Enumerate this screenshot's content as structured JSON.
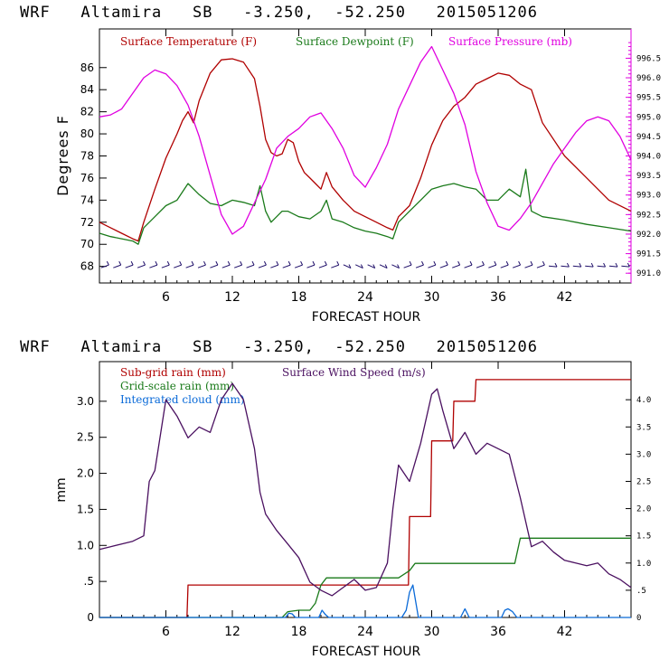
{
  "chart_data": [
    {
      "type": "line",
      "title": "WRF   Altamira   SB   -3.250,  -52.250   2015051206",
      "xlabel": "FORECAST HOUR",
      "ylabel": "Degrees F",
      "x_ticks": [
        "6",
        "12",
        "18",
        "24",
        "30",
        "36",
        "42"
      ],
      "xlim": [
        0,
        48
      ],
      "ylim": [
        66.5,
        89.5
      ],
      "y_ticks": [
        "68",
        "70",
        "72",
        "74",
        "76",
        "78",
        "80",
        "82",
        "84",
        "86"
      ],
      "y2lim": [
        990.75,
        997.25
      ],
      "y2_ticks": [
        "991.0",
        "991.5",
        "992.0",
        "992.5",
        "993.0",
        "993.5",
        "994.0",
        "994.5",
        "995.0",
        "995.5",
        "996.0",
        "996.5"
      ],
      "legend": [
        "Surface Temperature (F)",
        "Surface Dewpoint (F)",
        "Surface Pressure (mb)"
      ],
      "colors": {
        "temperature": "#b00000",
        "dewpoint": "#1a7a1a",
        "pressure": "#e000e0",
        "wind_barbs": "#20106a"
      },
      "series": [
        {
          "name": "Surface Temperature (F)",
          "color": "#b00000",
          "x": [
            0,
            1,
            2,
            3,
            3.5,
            4,
            5,
            6,
            7,
            7.5,
            8,
            8.5,
            9,
            10,
            11,
            12,
            13,
            14,
            14.5,
            15,
            15.5,
            16,
            16.5,
            17,
            17.5,
            18,
            18.5,
            19,
            19.5,
            20,
            20.5,
            21,
            22,
            23,
            24,
            25,
            26,
            26.5,
            27,
            28,
            29,
            30,
            31,
            32,
            33,
            34,
            35,
            36,
            37,
            38,
            39,
            40,
            42,
            44,
            46,
            48
          ],
          "y": [
            72,
            71.5,
            71,
            70.5,
            70.3,
            72,
            75,
            77.8,
            80,
            81.2,
            82,
            81,
            83,
            85.5,
            86.7,
            86.8,
            86.5,
            85,
            82.5,
            79.5,
            78.3,
            78,
            78.2,
            79.5,
            79.2,
            77.5,
            76.5,
            76,
            75.5,
            75,
            76.5,
            75.2,
            74,
            73,
            72.5,
            72,
            71.5,
            71.3,
            72.5,
            73.5,
            76,
            79,
            81.2,
            82.5,
            83.3,
            84.5,
            85,
            85.5,
            85.3,
            84.5,
            84,
            81,
            78,
            76,
            74,
            73
          ]
        },
        {
          "name": "Surface Dewpoint (F)",
          "color": "#1a7a1a",
          "x": [
            0,
            1,
            2,
            3,
            3.5,
            4,
            5,
            6,
            7,
            8,
            9,
            10,
            11,
            12,
            13,
            14,
            14.5,
            15,
            15.5,
            16,
            16.5,
            17,
            18,
            19,
            20,
            20.5,
            21,
            22,
            23,
            24,
            25,
            26,
            26.5,
            27,
            28,
            29,
            30,
            31,
            32,
            33,
            34,
            35,
            36,
            37,
            38,
            38.5,
            39,
            40,
            42,
            44,
            46,
            48
          ],
          "y": [
            71,
            70.7,
            70.5,
            70.3,
            70,
            71.5,
            72.5,
            73.5,
            74,
            75.5,
            74.5,
            73.7,
            73.5,
            74,
            73.8,
            73.5,
            75.3,
            73,
            72,
            72.5,
            73,
            73,
            72.5,
            72.3,
            73,
            74,
            72.3,
            72,
            71.5,
            71.2,
            71,
            70.7,
            70.5,
            72,
            73,
            74,
            75,
            75.3,
            75.5,
            75.2,
            75,
            74,
            74,
            75,
            74.3,
            76.8,
            73,
            72.5,
            72.2,
            71.8,
            71.5,
            71.2
          ]
        },
        {
          "name": "Surface Pressure (mb)",
          "color": "#e000e0",
          "x": [
            0,
            1,
            2,
            3,
            4,
            5,
            6,
            7,
            8,
            9,
            10,
            11,
            12,
            13,
            14,
            15,
            16,
            17,
            18,
            19,
            20,
            21,
            22,
            23,
            24,
            25,
            26,
            27,
            28,
            29,
            30,
            31,
            32,
            33,
            34,
            35,
            36,
            37,
            38,
            39,
            40,
            41,
            42,
            43,
            44,
            45,
            46,
            47,
            48
          ],
          "y": [
            995.0,
            995.05,
            995.2,
            995.6,
            996.0,
            996.2,
            996.1,
            995.8,
            995.3,
            994.5,
            993.5,
            992.5,
            992.0,
            992.2,
            992.8,
            993.4,
            994.2,
            994.5,
            994.7,
            995.0,
            995.1,
            994.7,
            994.2,
            993.5,
            993.2,
            993.7,
            994.3,
            995.2,
            995.8,
            996.4,
            996.8,
            996.2,
            995.6,
            994.8,
            993.6,
            992.8,
            992.2,
            992.1,
            992.4,
            992.8,
            993.3,
            993.8,
            994.2,
            994.6,
            994.9,
            995.0,
            994.9,
            994.5,
            993.9
          ]
        },
        {
          "name": "Wind barbs",
          "color": "#20106a",
          "x_range": [
            0.5,
            47.5
          ],
          "y": 68
        }
      ]
    },
    {
      "type": "line",
      "title": "WRF   Altamira   SB   -3.250,  -52.250   2015051206",
      "xlabel": "FORECAST HOUR",
      "ylabel": "mm",
      "x_ticks": [
        "6",
        "12",
        "18",
        "24",
        "30",
        "36",
        "42"
      ],
      "xlim": [
        0,
        48
      ],
      "ylim": [
        0,
        3.55
      ],
      "y_ticks": [
        "0",
        ".5",
        "1.0",
        "1.5",
        "2.0",
        "2.5",
        "3.0"
      ],
      "y2lim": [
        0,
        4.7
      ],
      "y2_ticks": [
        "0",
        ".5",
        "1.0",
        "1.5",
        "2.0",
        "2.5",
        "3.0",
        "3.5",
        "4.0"
      ],
      "legend": [
        "Sub-grid rain (mm)",
        "Surface Wind Speed (m/s)",
        "Grid-scale rain (mm)",
        "Integrated cloud (mm)"
      ],
      "colors": {
        "subgrid": "#b00000",
        "wind": "#4a1060",
        "gridscale": "#1a7a1a",
        "cloud": "#0a6ad8"
      },
      "series": [
        {
          "name": "Sub-grid rain (mm)",
          "color": "#b00000",
          "x": [
            0,
            7.9,
            8,
            27.9,
            28,
            29.9,
            30,
            31.9,
            32,
            33.9,
            34,
            48
          ],
          "y": [
            0,
            0,
            0.45,
            0.45,
            1.4,
            1.4,
            2.45,
            2.45,
            3.0,
            3.0,
            3.3,
            3.3
          ]
        },
        {
          "name": "Grid-scale rain (mm)",
          "color": "#1a7a1a",
          "x": [
            0,
            16.5,
            17,
            18,
            19,
            19.5,
            20,
            20.5,
            27,
            28,
            28.5,
            34,
            37.5,
            38,
            48
          ],
          "y": [
            0,
            0,
            0.08,
            0.1,
            0.1,
            0.2,
            0.45,
            0.55,
            0.55,
            0.65,
            0.75,
            0.75,
            0.75,
            1.1,
            1.1
          ]
        },
        {
          "name": "Integrated cloud (mm)",
          "color": "#0a6ad8",
          "x": [
            0,
            16.8,
            17.1,
            17.4,
            17.7,
            19.8,
            20.1,
            20.4,
            20.7,
            27.3,
            27.7,
            28,
            28.3,
            28.8,
            32.6,
            33,
            33.4,
            36.3,
            36.6,
            36.9,
            37.3,
            37.7,
            48
          ],
          "y": [
            0,
            0,
            0.06,
            0.05,
            0,
            0,
            0.1,
            0.04,
            0,
            0,
            0.1,
            0.35,
            0.45,
            0,
            0,
            0.12,
            0,
            0,
            0.1,
            0.12,
            0.08,
            0,
            0
          ]
        },
        {
          "name": "Surface Wind Speed (m/s)",
          "color": "#4a1060",
          "x": [
            0,
            1,
            2,
            3,
            4,
            4.5,
            5,
            6,
            7,
            8,
            9,
            10,
            11,
            12,
            13,
            14,
            14.5,
            15,
            16,
            17,
            18,
            19,
            20,
            21,
            22,
            23,
            24,
            25,
            26,
            26.5,
            27,
            28,
            29,
            30,
            30.5,
            31,
            32,
            33,
            34,
            35,
            36,
            37,
            38,
            39,
            40,
            41,
            42,
            43,
            44,
            45,
            46,
            47,
            48
          ],
          "y": [
            1.25,
            1.3,
            1.35,
            1.4,
            1.5,
            2.5,
            2.7,
            4.0,
            3.7,
            3.3,
            3.5,
            3.4,
            4.0,
            4.3,
            4.0,
            3.1,
            2.3,
            1.9,
            1.6,
            1.35,
            1.1,
            0.65,
            0.5,
            0.4,
            0.55,
            0.7,
            0.5,
            0.55,
            1.0,
            2.0,
            2.8,
            2.5,
            3.2,
            4.1,
            4.2,
            3.8,
            3.1,
            3.4,
            3.0,
            3.2,
            3.1,
            3.0,
            2.2,
            1.3,
            1.4,
            1.2,
            1.05,
            1.0,
            0.95,
            1.0,
            0.8,
            0.7,
            0.55
          ]
        }
      ]
    }
  ]
}
